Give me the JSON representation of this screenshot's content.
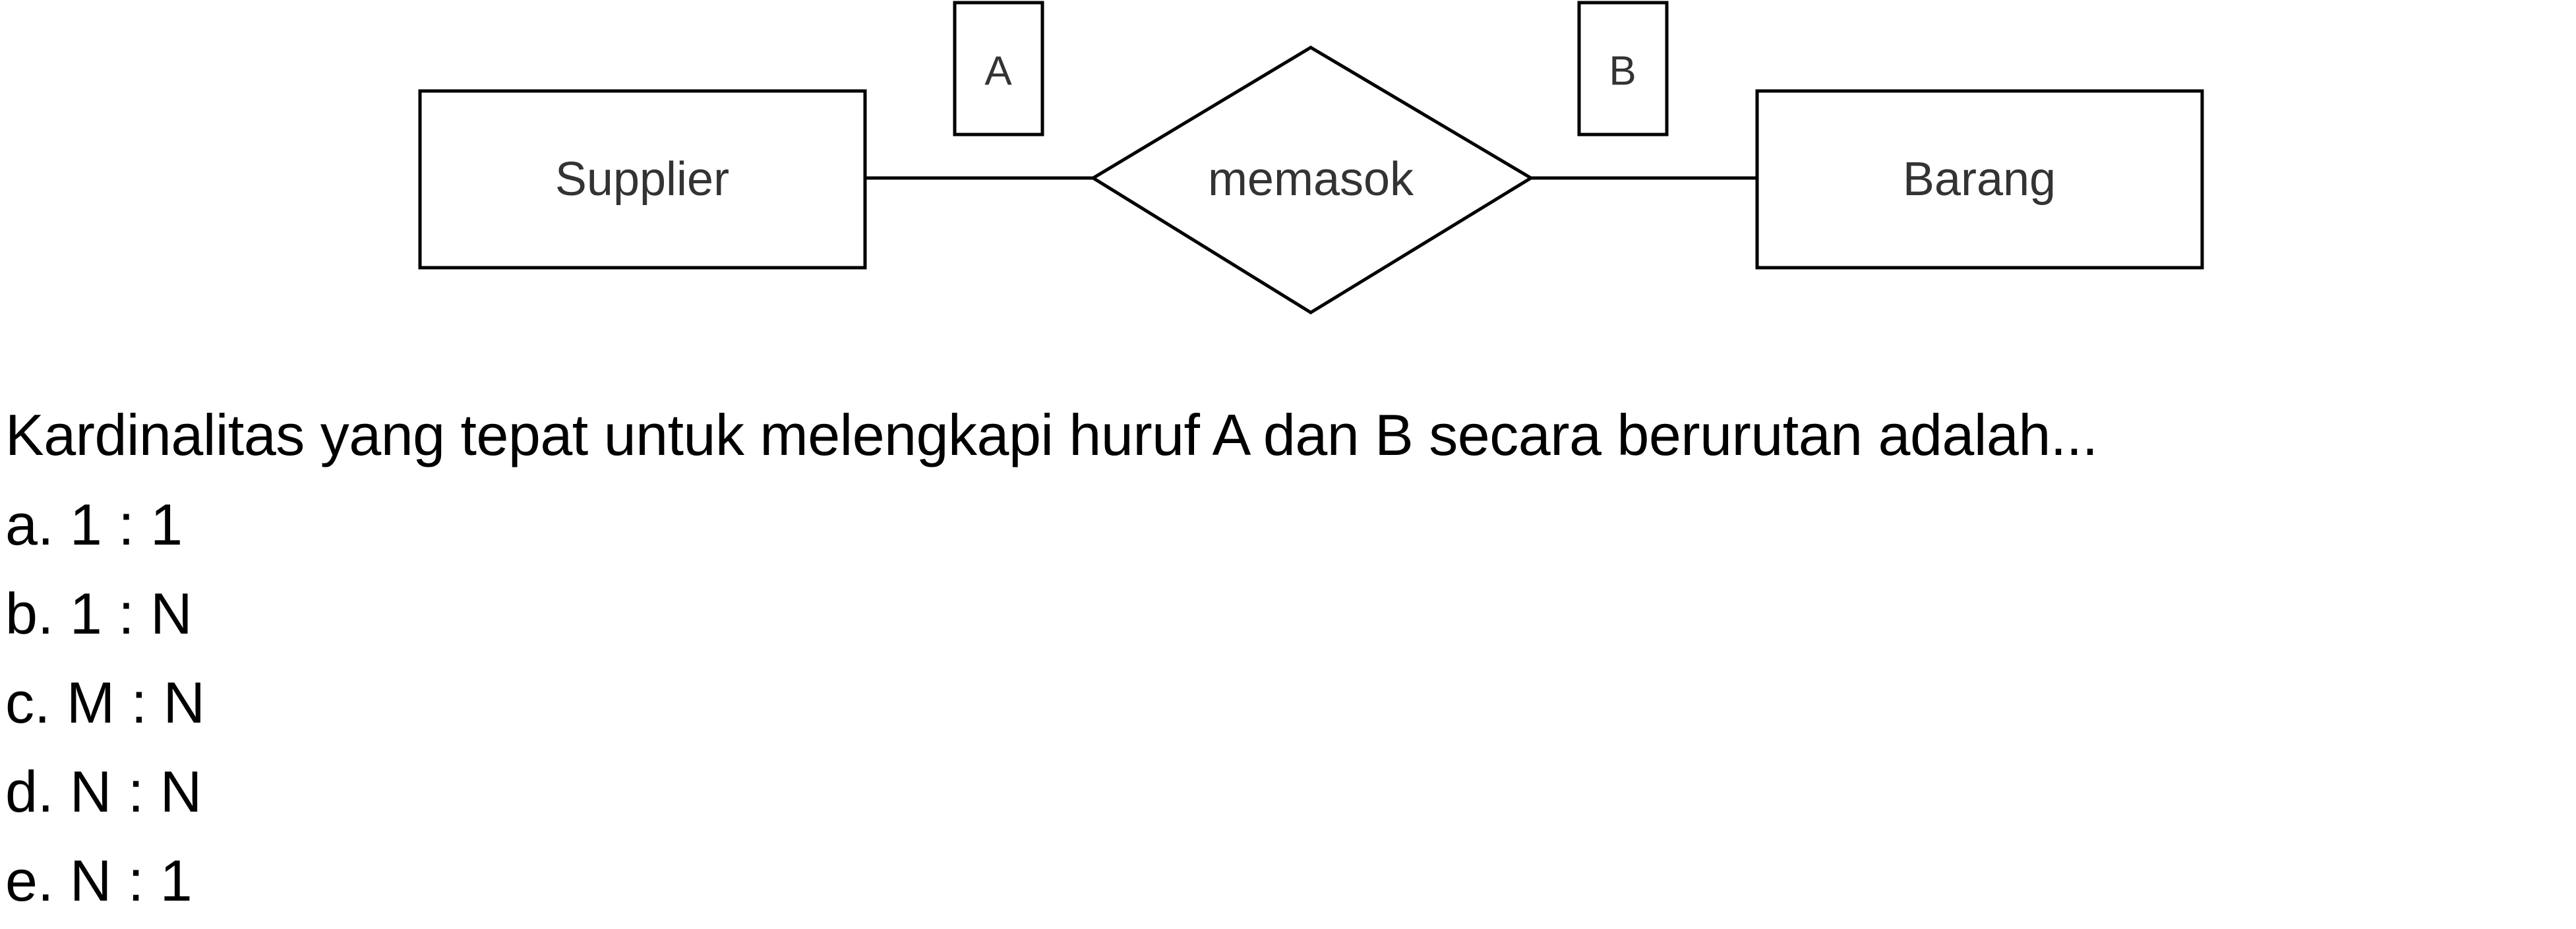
{
  "diagram": {
    "entity_left": "Supplier",
    "relationship": "memasok",
    "entity_right": "Barang",
    "cardinality_left_box": "A",
    "cardinality_right_box": "B"
  },
  "question": "Kardinalitas yang tepat untuk melengkapi huruf A dan B secara berurutan adalah...",
  "options": [
    "a. 1 : 1",
    "b. 1 : N",
    "c. M : N",
    "d. N : N",
    "e. N : 1"
  ]
}
